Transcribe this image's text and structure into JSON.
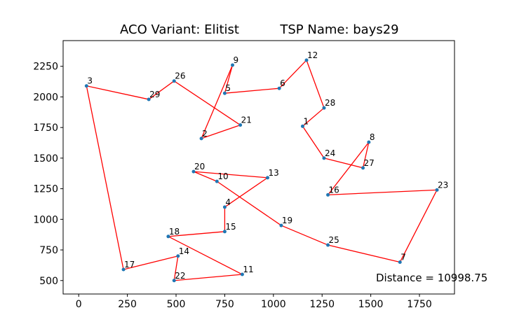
{
  "chart_data": {
    "type": "line",
    "title_left": "ACO Variant: Elitist",
    "title_right": "TSP Name: bays29",
    "xlabel": "",
    "ylabel": "",
    "xlim": [
      -80,
      1930
    ],
    "ylim": [
      390,
      2460
    ],
    "x_ticks": [
      0,
      250,
      500,
      750,
      1000,
      1250,
      1500,
      1750
    ],
    "y_ticks": [
      500,
      750,
      1000,
      1250,
      1500,
      1750,
      2000,
      2250
    ],
    "grid": false,
    "route_color": "#ff0000",
    "point_color": "#1f77b4",
    "annotation": "Distance = 10998.75",
    "points": [
      {
        "label": "1",
        "x": 1150,
        "y": 1760
      },
      {
        "label": "2",
        "x": 630,
        "y": 1660
      },
      {
        "label": "3",
        "x": 40,
        "y": 2090
      },
      {
        "label": "4",
        "x": 750,
        "y": 1100
      },
      {
        "label": "5",
        "x": 750,
        "y": 2030
      },
      {
        "label": "6",
        "x": 1030,
        "y": 2070
      },
      {
        "label": "7",
        "x": 1650,
        "y": 650
      },
      {
        "label": "8",
        "x": 1490,
        "y": 1630
      },
      {
        "label": "9",
        "x": 790,
        "y": 2260
      },
      {
        "label": "10",
        "x": 710,
        "y": 1310
      },
      {
        "label": "11",
        "x": 840,
        "y": 550
      },
      {
        "label": "12",
        "x": 1170,
        "y": 2300
      },
      {
        "label": "13",
        "x": 970,
        "y": 1340
      },
      {
        "label": "14",
        "x": 510,
        "y": 700
      },
      {
        "label": "15",
        "x": 750,
        "y": 900
      },
      {
        "label": "16",
        "x": 1280,
        "y": 1200
      },
      {
        "label": "17",
        "x": 230,
        "y": 590
      },
      {
        "label": "18",
        "x": 460,
        "y": 860
      },
      {
        "label": "19",
        "x": 1040,
        "y": 950
      },
      {
        "label": "20",
        "x": 590,
        "y": 1390
      },
      {
        "label": "21",
        "x": 830,
        "y": 1770
      },
      {
        "label": "22",
        "x": 490,
        "y": 500
      },
      {
        "label": "23",
        "x": 1840,
        "y": 1240
      },
      {
        "label": "24",
        "x": 1260,
        "y": 1500
      },
      {
        "label": "25",
        "x": 1280,
        "y": 790
      },
      {
        "label": "26",
        "x": 490,
        "y": 2130
      },
      {
        "label": "27",
        "x": 1460,
        "y": 1420
      },
      {
        "label": "28",
        "x": 1260,
        "y": 1910
      },
      {
        "label": "29",
        "x": 360,
        "y": 1980
      }
    ],
    "tour": [
      "3",
      "29",
      "26",
      "21",
      "2",
      "9",
      "5",
      "6",
      "12",
      "28",
      "1",
      "24",
      "27",
      "8",
      "16",
      "23",
      "7",
      "25",
      "19",
      "10",
      "20",
      "13",
      "4",
      "15",
      "18",
      "11",
      "22",
      "14",
      "17",
      "3"
    ]
  }
}
